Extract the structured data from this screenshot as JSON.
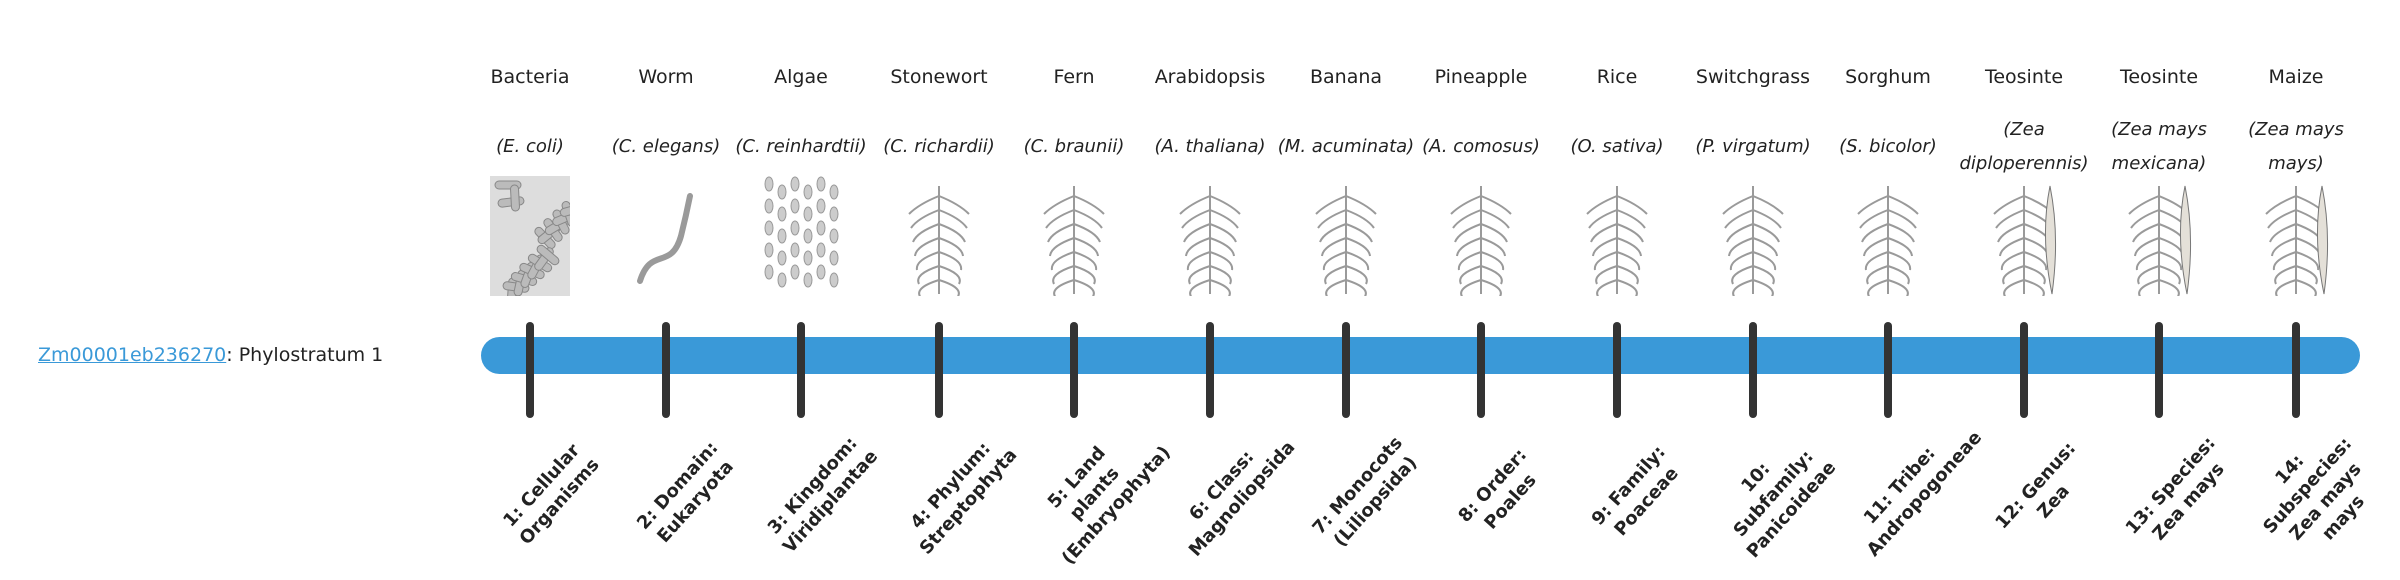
{
  "gene": {
    "id": "Zm00001eb236270",
    "suffix": ": Phylostratum 1"
  },
  "colors": {
    "bar": "#3a99d8",
    "tick": "#333333",
    "link": "#3a99d8"
  },
  "strata": [
    {
      "common": "Bacteria",
      "scientific": "(E. coli)",
      "label": "1: Cellular Organisms",
      "icon": "bacteria-icon"
    },
    {
      "common": "Worm",
      "scientific": "(C. elegans)",
      "label": "2: Domain: Eukaryota",
      "icon": "worm-icon"
    },
    {
      "common": "Algae",
      "scientific": "(C. reinhardtii)",
      "label": "3: Kingdom: Viridiplantae",
      "icon": "algae-icon"
    },
    {
      "common": "Stonewort",
      "scientific": "(C. richardii)",
      "label": "4: Phylum: Streptophyta",
      "icon": "stonewort-icon"
    },
    {
      "common": "Fern",
      "scientific": "(C. braunii)",
      "label": "5: Land plants (Embryophyta)",
      "icon": "fern-icon"
    },
    {
      "common": "Arabidopsis",
      "scientific": "(A. thaliana)",
      "label": "6: Class: Magnoliopsida",
      "icon": "arabidopsis-icon"
    },
    {
      "common": "Banana",
      "scientific": "(M. acuminata)",
      "label": "7: Monocots (Liliopsida)",
      "icon": "banana-icon"
    },
    {
      "common": "Pineapple",
      "scientific": "(A. comosus)",
      "label": "8: Order: Poales",
      "icon": "pineapple-icon"
    },
    {
      "common": "Rice",
      "scientific": "(O. sativa)",
      "label": "9: Family: Poaceae",
      "icon": "rice-icon"
    },
    {
      "common": "Switchgrass",
      "scientific": "(P. virgatum)",
      "label": "10: Subfamily: Panicoideae",
      "icon": "switchgrass-icon"
    },
    {
      "common": "Sorghum",
      "scientific": "(S. bicolor)",
      "label": "11: Tribe: Andropogoneae",
      "icon": "sorghum-icon"
    },
    {
      "common": "Teosinte",
      "scientific": "(Zea diploperennis)",
      "label": "12: Genus: Zea",
      "icon": "teosinte-icon"
    },
    {
      "common": "Teosinte",
      "scientific": "(Zea mays mexicana)",
      "label": "13: Species: Zea mays",
      "icon": "teosinte-mexicana-icon"
    },
    {
      "common": "Maize",
      "scientific": "(Zea mays mays)",
      "label": "14: Subspecies: Zea mays mays",
      "icon": "maize-icon"
    }
  ]
}
